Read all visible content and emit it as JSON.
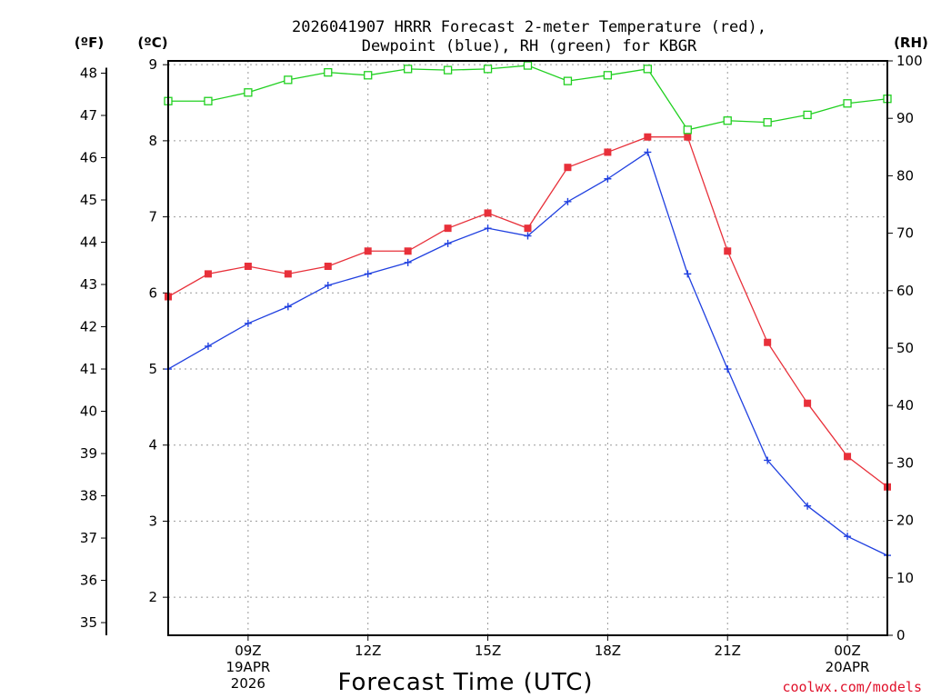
{
  "chart_data": {
    "type": "line",
    "title_line1": "2026041907 HRRR Forecast 2-meter Temperature (red),",
    "title_line2": "Dewpoint (blue), RH (green) for KBGR",
    "xlabel": "Forecast Time (UTC)",
    "credit": "coolwx.com/models",
    "units": {
      "fahrenheit": "(ºF)",
      "celsius": "(ºC)",
      "rh": "(RH)"
    },
    "x_hours": [
      7,
      8,
      9,
      10,
      11,
      12,
      13,
      14,
      15,
      16,
      17,
      18,
      19,
      20,
      21,
      22,
      23,
      24,
      25
    ],
    "xlim": [
      7,
      25
    ],
    "x_ticks": [
      {
        "hour": 9,
        "label": "09Z",
        "date": "19APR",
        "year": "2026"
      },
      {
        "hour": 12,
        "label": "12Z"
      },
      {
        "hour": 15,
        "label": "15Z"
      },
      {
        "hour": 18,
        "label": "18Z"
      },
      {
        "hour": 21,
        "label": "21Z"
      },
      {
        "hour": 24,
        "label": "00Z",
        "date": "20APR"
      }
    ],
    "celsius_axis": {
      "ylim": [
        1.5,
        9.05
      ],
      "ticks": [
        2,
        3,
        4,
        5,
        6,
        7,
        8,
        9
      ]
    },
    "fahrenheit_ticks": [
      35,
      36,
      37,
      38,
      39,
      40,
      41,
      42,
      43,
      44,
      45,
      46,
      47,
      48
    ],
    "rh_axis": {
      "ylim": [
        0,
        100
      ],
      "ticks": [
        0,
        10,
        20,
        30,
        40,
        50,
        60,
        70,
        80,
        90,
        100
      ]
    },
    "series": [
      {
        "name": "Temperature",
        "axis": "celsius",
        "color": "#e8303a",
        "marker": "filled-square",
        "values": [
          5.95,
          6.25,
          6.35,
          6.25,
          6.35,
          6.55,
          6.55,
          6.85,
          7.05,
          6.85,
          7.65,
          7.85,
          8.05,
          8.05,
          6.55,
          5.35,
          4.55,
          3.85,
          3.45
        ]
      },
      {
        "name": "Dewpoint",
        "axis": "celsius",
        "color": "#2040e0",
        "marker": "plus",
        "values": [
          5.0,
          5.3,
          5.6,
          5.82,
          6.1,
          6.25,
          6.4,
          6.65,
          6.85,
          6.75,
          7.2,
          7.5,
          7.85,
          6.25,
          5.0,
          3.8,
          3.2,
          2.8,
          2.55
        ]
      },
      {
        "name": "RH",
        "axis": "rh",
        "color": "#20d020",
        "marker": "open-square",
        "values": [
          93.0,
          93.0,
          94.5,
          96.7,
          98.0,
          97.5,
          98.6,
          98.4,
          98.6,
          99.2,
          96.5,
          97.5,
          98.6,
          88.0,
          89.6,
          89.3,
          90.6,
          92.6,
          93.4
        ]
      }
    ]
  }
}
